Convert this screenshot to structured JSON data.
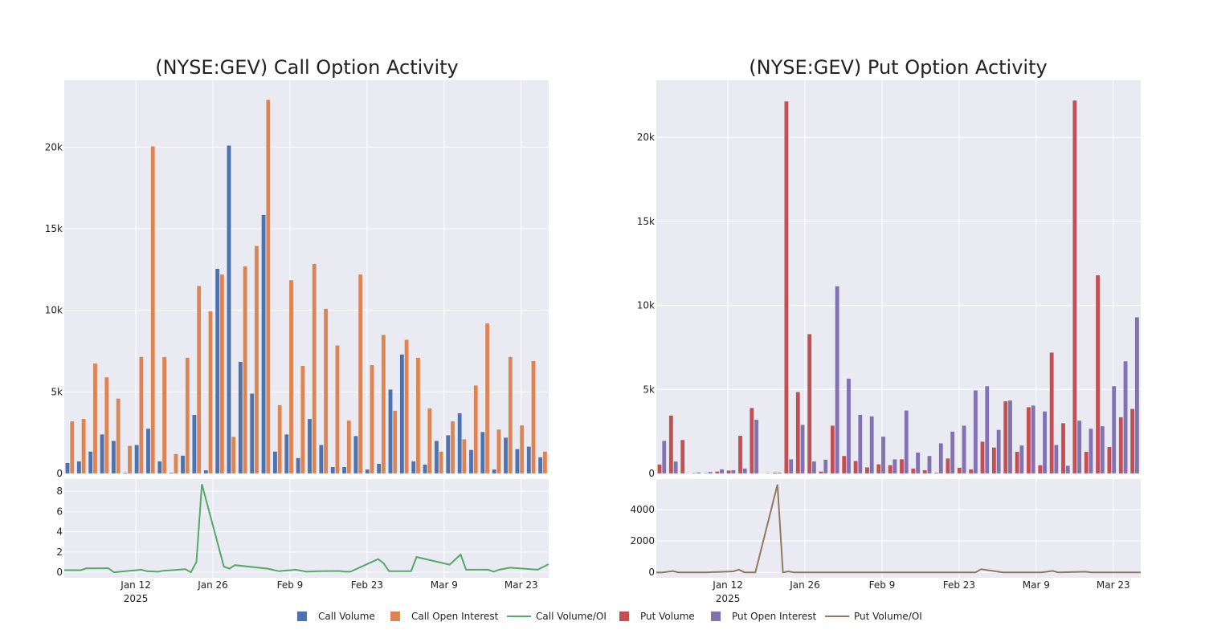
{
  "colors": {
    "background": "#eaeaf2",
    "call_volume": "#4c72b0",
    "call_oi": "#dd8452",
    "call_ratio": "#55a868",
    "put_volume": "#c44e52",
    "put_oi": "#8172b3",
    "put_ratio": "#937860"
  },
  "legend": [
    {
      "label": "Call Volume",
      "kind": "square",
      "color": "#4c72b0"
    },
    {
      "label": "Call Open Interest",
      "kind": "square",
      "color": "#dd8452"
    },
    {
      "label": "Call Volume/OI",
      "kind": "line",
      "color": "#55a868"
    },
    {
      "label": "Put Volume",
      "kind": "square",
      "color": "#c44e52"
    },
    {
      "label": "Put Open Interest",
      "kind": "square",
      "color": "#8172b3"
    },
    {
      "label": "Put Volume/OI",
      "kind": "line",
      "color": "#937860"
    }
  ],
  "chart_data": [
    {
      "type": "bar",
      "title": "(NYSE:GEV) Call Option Activity",
      "x_range": [
        "2024-12-30",
        "2025-03-28"
      ],
      "x_ticks": [
        {
          "date": "2025-01-12",
          "label": "Jan 12",
          "sub": "2025"
        },
        {
          "date": "2025-01-26",
          "label": "Jan 26"
        },
        {
          "date": "2025-02-09",
          "label": "Feb 9"
        },
        {
          "date": "2025-02-23",
          "label": "Feb 23"
        },
        {
          "date": "2025-03-09",
          "label": "Mar 9"
        },
        {
          "date": "2025-03-23",
          "label": "Mar 23"
        }
      ],
      "bars": {
        "ylim": [
          0,
          24100
        ],
        "y_ticks": [
          {
            "v": 0,
            "label": "0"
          },
          {
            "v": 5000,
            "label": "5k"
          },
          {
            "v": 10000,
            "label": "10k"
          },
          {
            "v": 15000,
            "label": "15k"
          },
          {
            "v": 20000,
            "label": "20k"
          }
        ],
        "series": [
          {
            "name": "Call Volume",
            "color": "#4c72b0",
            "values": [
              650,
              750,
              1350,
              2400,
              2000,
              50,
              1750,
              2750,
              750,
              50,
              1100,
              3600,
              200,
              12550,
              20100,
              6850,
              4900,
              15850,
              1350,
              2400,
              950,
              3350,
              1750,
              400,
              400,
              2300,
              250,
              600,
              5150,
              7300,
              750,
              550,
              2000,
              2350,
              3700,
              1450,
              2550,
              250,
              2200,
              1500,
              1650,
              1000
            ]
          },
          {
            "name": "Call Open Interest",
            "color": "#dd8452",
            "values": [
              3200,
              3350,
              6750,
              5900,
              4600,
              1700,
              7150,
              20050,
              7150,
              1200,
              7100,
              11500,
              9950,
              12200,
              2250,
              12700,
              13950,
              22900,
              4200,
              11850,
              6600,
              12850,
              10100,
              7850,
              3250,
              12200,
              6650,
              8500,
              3850,
              8200,
              7100,
              4000,
              1350,
              3200,
              2100,
              5400,
              9200,
              2700,
              7150,
              2950,
              6900,
              1350
            ]
          }
        ]
      },
      "line": {
        "name": "Call Volume/OI",
        "color": "#55a868",
        "ylim": [
          -0.55,
          9.2
        ],
        "y_ticks": [
          {
            "v": 0,
            "label": "0"
          },
          {
            "v": 2,
            "label": "2"
          },
          {
            "v": 4,
            "label": "4"
          },
          {
            "v": 6,
            "label": "6"
          },
          {
            "v": 8,
            "label": "8"
          }
        ],
        "points": [
          [
            "2024-12-30",
            0.2
          ],
          [
            "2025-01-02",
            0.2
          ],
          [
            "2025-01-03",
            0.38
          ],
          [
            "2025-01-07",
            0.4
          ],
          [
            "2025-01-08",
            0
          ],
          [
            "2025-01-13",
            0.25
          ],
          [
            "2025-01-14",
            0.1
          ],
          [
            "2025-01-16",
            0.05
          ],
          [
            "2025-01-17",
            0.15
          ],
          [
            "2025-01-21",
            0.3
          ],
          [
            "2025-01-22",
            0
          ],
          [
            "2025-01-23",
            1.0
          ],
          [
            "2025-01-24",
            8.7
          ],
          [
            "2025-01-28",
            0.55
          ],
          [
            "2025-01-29",
            0.35
          ],
          [
            "2025-01-30",
            0.7
          ],
          [
            "2025-02-05",
            0.35
          ],
          [
            "2025-02-07",
            0.1
          ],
          [
            "2025-02-10",
            0.25
          ],
          [
            "2025-02-12",
            0.05
          ],
          [
            "2025-02-14",
            0.1
          ],
          [
            "2025-02-18",
            0.12
          ],
          [
            "2025-02-19",
            0.05
          ],
          [
            "2025-02-20",
            0.05
          ],
          [
            "2025-02-25",
            1.3
          ],
          [
            "2025-02-26",
            0.9
          ],
          [
            "2025-02-27",
            0.1
          ],
          [
            "2025-03-03",
            0.1
          ],
          [
            "2025-03-04",
            1.5
          ],
          [
            "2025-03-10",
            0.75
          ],
          [
            "2025-03-12",
            1.75
          ],
          [
            "2025-03-13",
            0.25
          ],
          [
            "2025-03-17",
            0.25
          ],
          [
            "2025-03-18",
            0.05
          ],
          [
            "2025-03-19",
            0.25
          ],
          [
            "2025-03-21",
            0.45
          ],
          [
            "2025-03-26",
            0.25
          ],
          [
            "2025-03-28",
            0.8
          ]
        ]
      }
    },
    {
      "type": "bar",
      "title": "(NYSE:GEV) Put Option Activity",
      "x_range": [
        "2024-12-30",
        "2025-03-28"
      ],
      "x_ticks": [
        {
          "date": "2025-01-12",
          "label": "Jan 12",
          "sub": "2025"
        },
        {
          "date": "2025-01-26",
          "label": "Jan 26"
        },
        {
          "date": "2025-02-09",
          "label": "Feb 9"
        },
        {
          "date": "2025-02-23",
          "label": "Feb 23"
        },
        {
          "date": "2025-03-09",
          "label": "Mar 9"
        },
        {
          "date": "2025-03-23",
          "label": "Mar 23"
        }
      ],
      "bars": {
        "ylim": [
          0,
          23400
        ],
        "y_ticks": [
          {
            "v": 0,
            "label": "0"
          },
          {
            "v": 5000,
            "label": "5k"
          },
          {
            "v": 10000,
            "label": "10k"
          },
          {
            "v": 15000,
            "label": "15k"
          },
          {
            "v": 20000,
            "label": "20k"
          }
        ],
        "series": [
          {
            "name": "Put Volume",
            "color": "#c44e52",
            "values": [
              540,
              3450,
              2000,
              30,
              30,
              120,
              180,
              2250,
              3900,
              10,
              60,
              22150,
              4850,
              8300,
              120,
              2850,
              1050,
              750,
              370,
              550,
              500,
              850,
              300,
              200,
              50,
              900,
              350,
              250,
              1900,
              1550,
              4300,
              1300,
              3950,
              500,
              7200,
              3000,
              22200,
              1300,
              11800,
              1580,
              3350,
              3850
            ]
          },
          {
            "name": "Put Open Interest",
            "color": "#8172b3",
            "values": [
              1950,
              720,
              20,
              70,
              100,
              250,
              200,
              300,
              3200,
              30,
              60,
              850,
              2900,
              720,
              830,
              11150,
              5650,
              3500,
              3400,
              2200,
              850,
              3750,
              1250,
              1050,
              1800,
              2500,
              2850,
              4950,
              5200,
              2600,
              4350,
              1670,
              4050,
              3700,
              1700,
              470,
              3150,
              2670,
              2820,
              5200,
              6680,
              9300
            ]
          }
        ]
      },
      "line": {
        "name": "Put Volume/OI",
        "color": "#937860",
        "ylim": [
          -350,
          5950
        ],
        "y_ticks": [
          {
            "v": 0,
            "label": "0"
          },
          {
            "v": 2000,
            "label": "2000"
          },
          {
            "v": 4000,
            "label": "4000"
          }
        ],
        "points": [
          [
            "2024-12-30",
            0
          ],
          [
            "2024-12-31",
            -10
          ],
          [
            "2025-01-02",
            80
          ],
          [
            "2025-01-03",
            0
          ],
          [
            "2025-01-08",
            0
          ],
          [
            "2025-01-13",
            60
          ],
          [
            "2025-01-14",
            170
          ],
          [
            "2025-01-15",
            0
          ],
          [
            "2025-01-17",
            0
          ],
          [
            "2025-01-21",
            5600
          ],
          [
            "2025-01-22",
            0
          ],
          [
            "2025-01-23",
            60
          ],
          [
            "2025-01-24",
            0
          ],
          [
            "2025-02-26",
            0
          ],
          [
            "2025-02-27",
            200
          ],
          [
            "2025-03-03",
            0
          ],
          [
            "2025-03-10",
            0
          ],
          [
            "2025-03-12",
            90
          ],
          [
            "2025-03-13",
            0
          ],
          [
            "2025-03-18",
            40
          ],
          [
            "2025-03-19",
            0
          ],
          [
            "2025-03-28",
            0
          ]
        ]
      }
    }
  ]
}
